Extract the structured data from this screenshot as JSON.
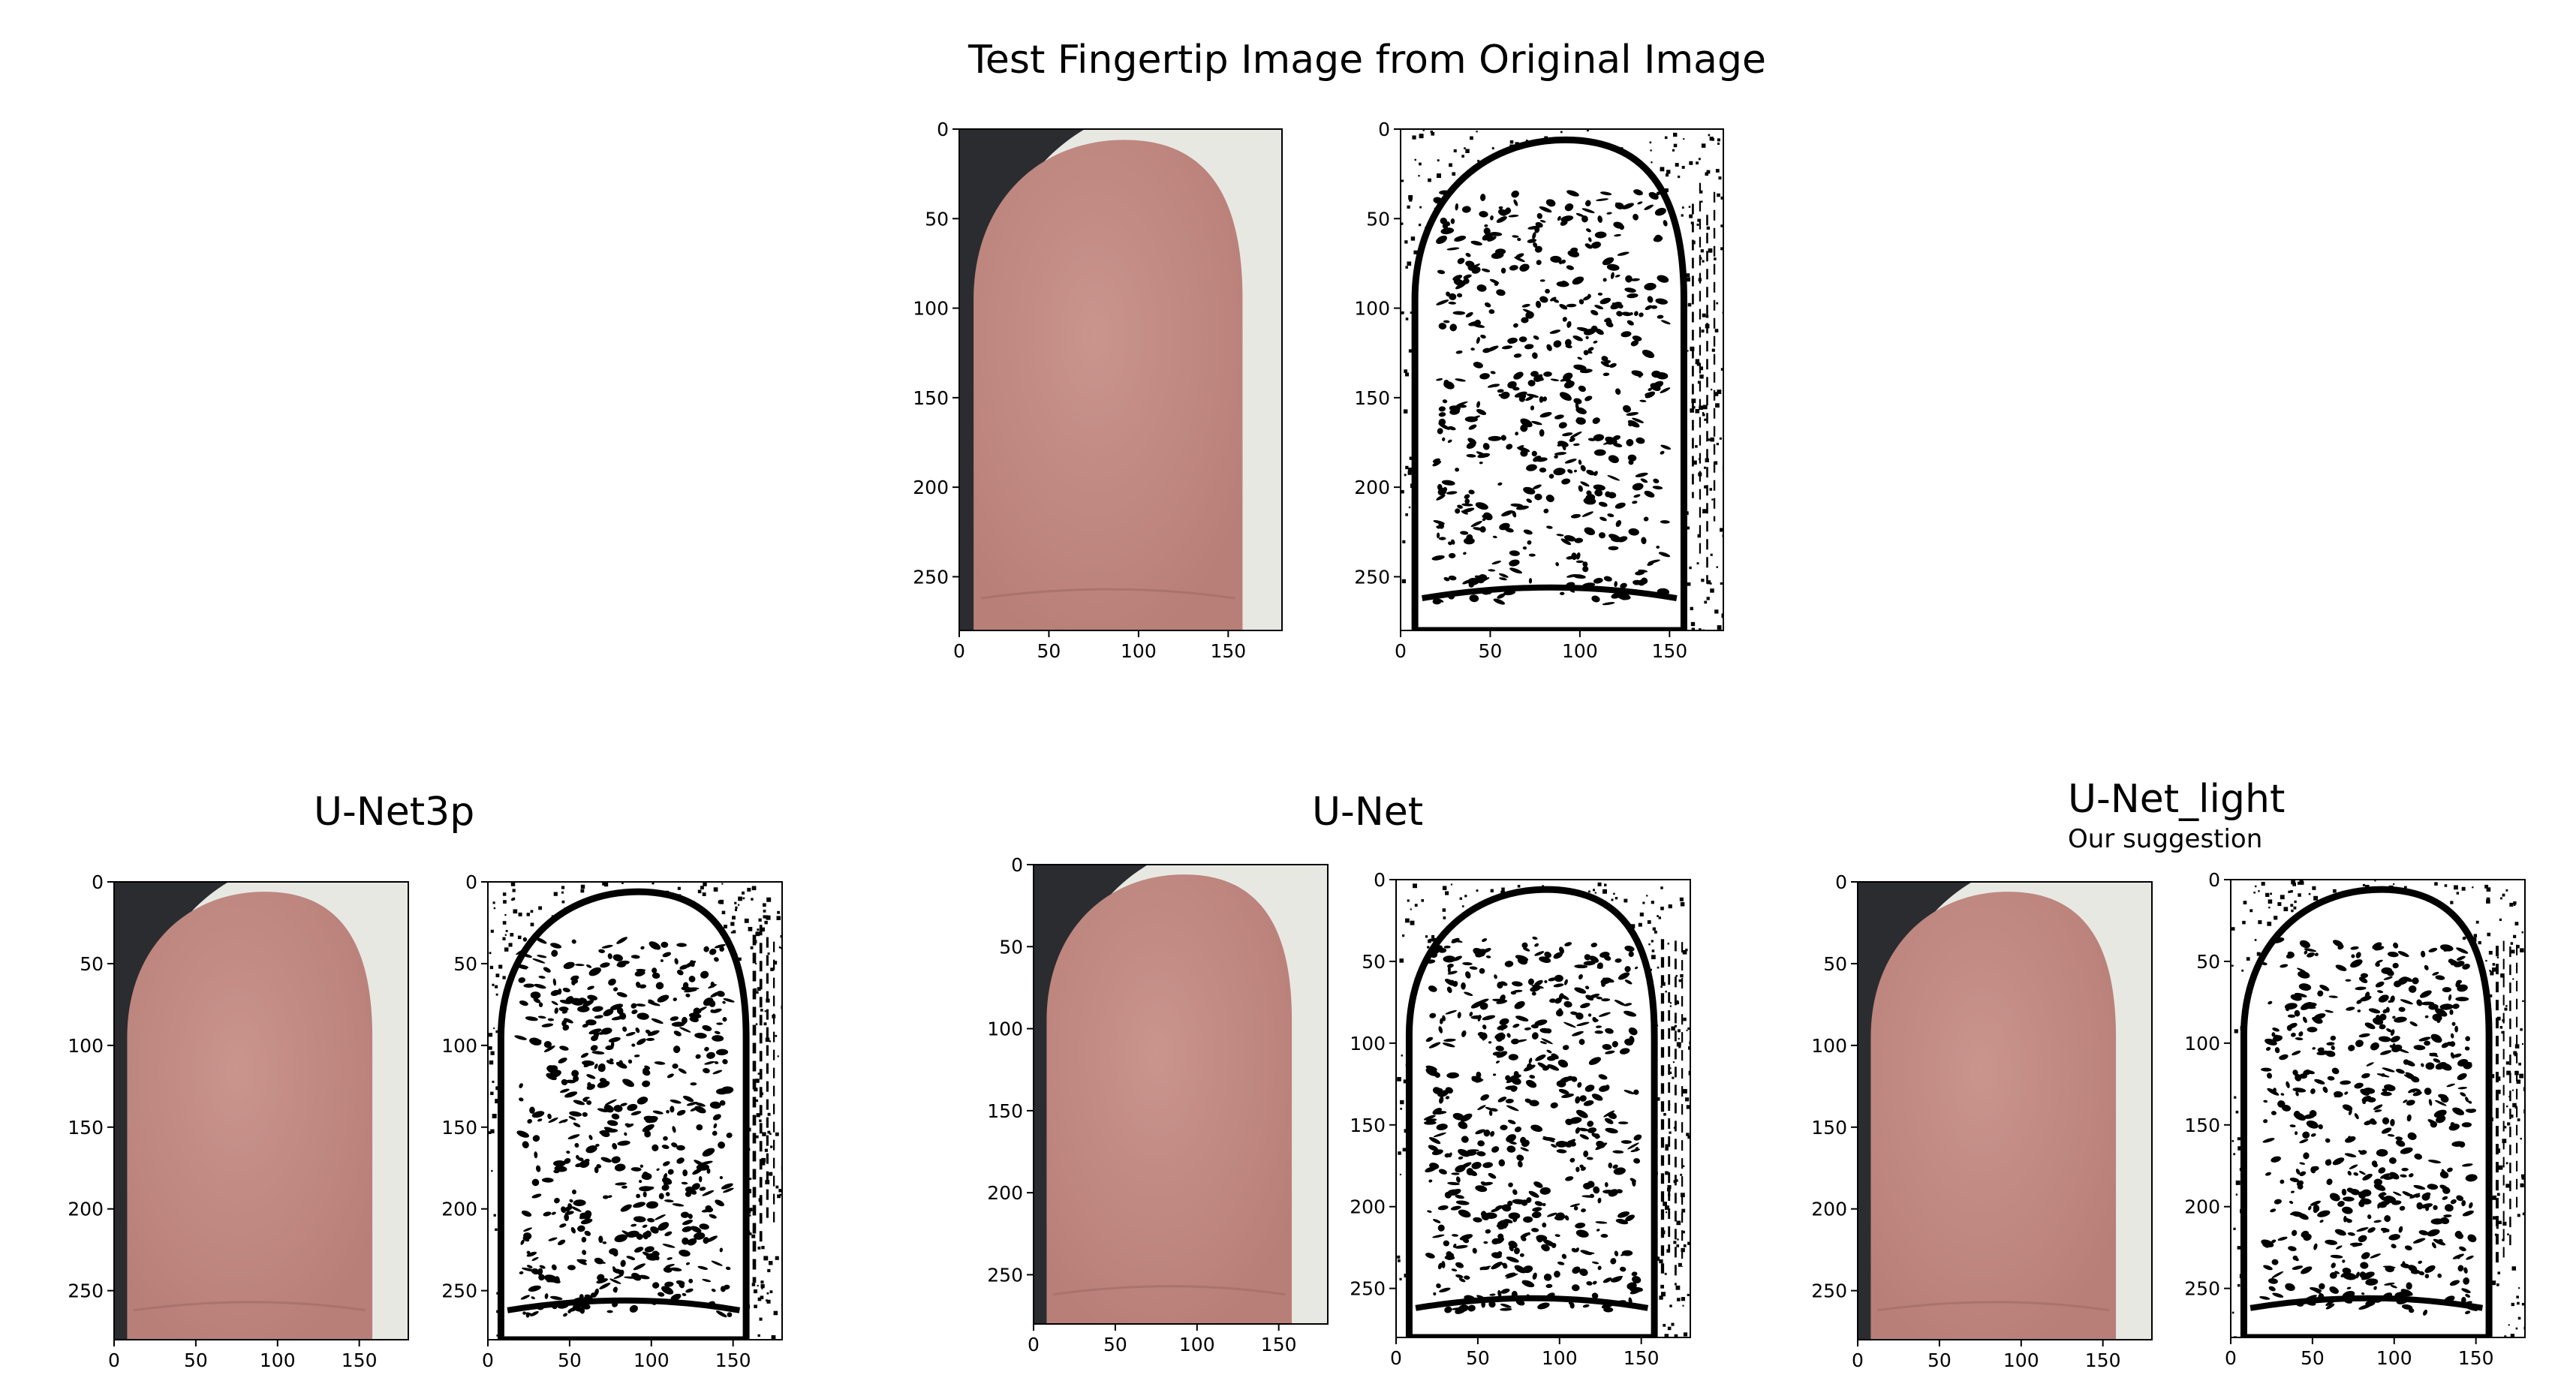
{
  "figure": {
    "main_title": "Test Fingertip Image from Original Image",
    "groups": [
      {
        "title": "U-Net3p",
        "subtitle": ""
      },
      {
        "title": "U-Net",
        "subtitle": ""
      },
      {
        "title": "U-Net_light",
        "subtitle": "Our suggestion"
      }
    ]
  },
  "axes": {
    "x_ticks": [
      "0",
      "50",
      "100",
      "150"
    ],
    "y_ticks": [
      "0",
      "50",
      "100",
      "150",
      "200",
      "250"
    ],
    "x_tick_values": [
      0,
      50,
      100,
      150
    ],
    "y_tick_values": [
      0,
      50,
      100,
      150,
      200,
      250
    ],
    "xlim": [
      0,
      180
    ],
    "ylim": [
      280,
      0
    ]
  },
  "colors": {
    "skin": "#b87f78",
    "skin_light": "#c9958d",
    "background_dark": "#2b2c30",
    "background_light": "#e8e8e3",
    "ink": "#000000"
  }
}
